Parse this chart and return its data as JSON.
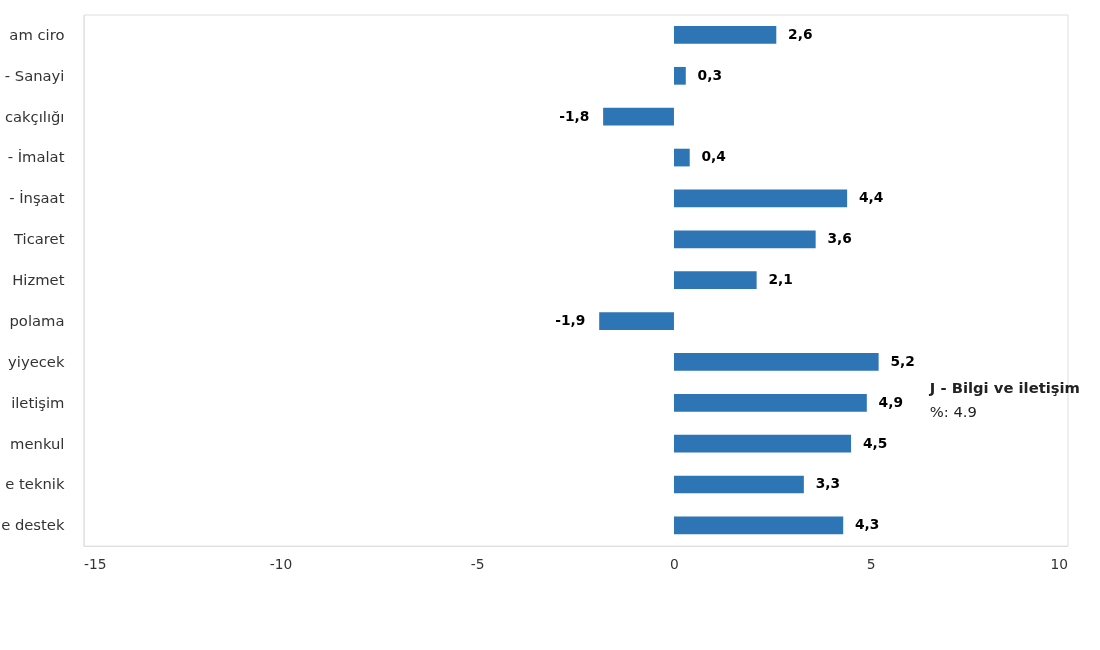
{
  "chart_data": {
    "type": "bar",
    "orientation": "horizontal",
    "categories": [
      "am ciro",
      "- Sanayi",
      "cakçılığı",
      "- İmalat",
      "- İnşaat",
      "Ticaret",
      "Hizmet",
      "polama",
      "yiyecek",
      "iletişim",
      "menkul",
      "e teknik",
      "e destek"
    ],
    "series": [
      {
        "color": "#2e75b6",
        "values": [
          2.6,
          0.3,
          -1.8,
          0.4,
          4.4,
          3.6,
          2.1,
          -1.9,
          5.2,
          4.9,
          4.5,
          3.3,
          4.3
        ],
        "value_labels": [
          "2,6",
          "0,3",
          "-1,8",
          "0,4",
          "4,4",
          "3,6",
          "2,1",
          "-1,9",
          "5,2",
          "4,9",
          "4,5",
          "3,3",
          "4,3"
        ]
      }
    ],
    "xlim": [
      -15,
      10
    ],
    "xticks": [
      -15,
      -10,
      -5,
      0,
      5,
      10
    ],
    "grid": false,
    "legend": false,
    "annotations": [
      "J - Bilgi ve iletişim",
      "%: 4.9"
    ]
  }
}
